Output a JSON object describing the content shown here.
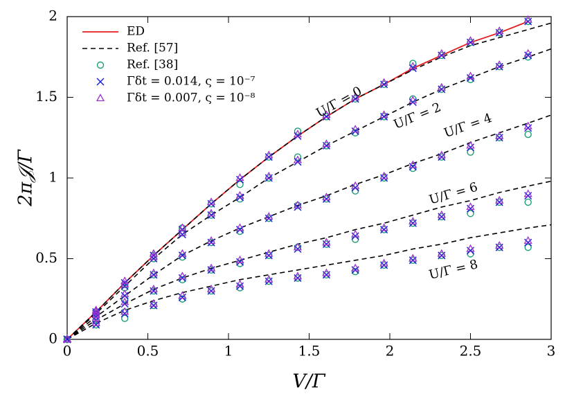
{
  "chart_data": {
    "type": "line",
    "xlabel": "V/Γ",
    "ylabel": "2π𝒥/Γ",
    "x": [
      0,
      0.179,
      0.357,
      0.536,
      0.714,
      0.893,
      1.071,
      1.25,
      1.429,
      1.607,
      1.786,
      1.964,
      2.143,
      2.321,
      2.5,
      2.679,
      2.857,
      3
    ],
    "xlim": [
      0,
      3
    ],
    "ylim": [
      0,
      2
    ],
    "xticks": [
      0,
      0.5,
      1,
      1.5,
      2,
      2.5,
      3
    ],
    "yticks": [
      0,
      0.5,
      1,
      1.5,
      2
    ],
    "legend": "upper left",
    "annotations": [
      "U/Γ = 0",
      "U/Γ = 2",
      "U/Γ = 4",
      "U/Γ = 6",
      "U/Γ = 8"
    ],
    "series": [
      {
        "name": "ED",
        "style": "line",
        "color": "#e41a1c",
        "curves": [
          [
            0,
            0.17,
            0.35,
            0.52,
            0.68,
            0.84,
            0.99,
            1.13,
            1.26,
            1.38,
            1.49,
            1.58,
            1.68,
            1.76,
            1.84,
            1.9,
            1.97,
            null
          ]
        ]
      },
      {
        "name": "Ref. [57]",
        "style": "dashed",
        "color": "#000000",
        "curves": [
          [
            0,
            0.17,
            0.35,
            0.52,
            0.68,
            0.84,
            0.99,
            1.13,
            1.26,
            1.38,
            1.49,
            1.58,
            1.67,
            1.75,
            1.82,
            1.87,
            1.92,
            1.96
          ],
          [
            0,
            0.16,
            0.33,
            0.5,
            0.65,
            0.77,
            0.88,
            1.0,
            1.1,
            1.2,
            1.29,
            1.38,
            1.47,
            1.55,
            1.62,
            1.69,
            1.75,
            1.8
          ],
          [
            0,
            0.14,
            0.27,
            0.4,
            0.52,
            0.61,
            0.69,
            0.76,
            0.83,
            0.89,
            0.96,
            1.02,
            1.09,
            1.15,
            1.22,
            1.28,
            1.34,
            1.39
          ],
          [
            0,
            0.12,
            0.22,
            0.31,
            0.38,
            0.44,
            0.49,
            0.54,
            0.59,
            0.63,
            0.68,
            0.72,
            0.77,
            0.82,
            0.86,
            0.91,
            0.95,
            0.98
          ],
          [
            0,
            0.1,
            0.18,
            0.24,
            0.29,
            0.33,
            0.37,
            0.4,
            0.43,
            0.46,
            0.49,
            0.52,
            0.56,
            0.59,
            0.63,
            0.66,
            0.69,
            0.71
          ]
        ]
      },
      {
        "name": "Ref. [38]",
        "style": "circle",
        "color": "#1a9e77",
        "curves": [
          [
            0,
            0.17,
            0.34,
            0.52,
            0.69,
            0.84,
            0.96,
            1.13,
            1.29,
            1.38,
            1.49,
            1.58,
            1.71,
            1.76,
            1.84,
            1.9,
            1.97,
            null
          ],
          [
            0,
            0.16,
            0.32,
            0.5,
            0.66,
            0.77,
            0.87,
            1.0,
            1.13,
            1.2,
            1.28,
            1.38,
            1.49,
            1.55,
            1.61,
            1.69,
            1.75,
            null
          ],
          [
            0,
            0.14,
            0.25,
            0.4,
            0.51,
            0.6,
            0.67,
            0.75,
            0.83,
            0.87,
            0.92,
            1.0,
            1.06,
            1.13,
            1.16,
            1.25,
            1.27,
            null
          ],
          [
            0,
            0.12,
            0.17,
            0.3,
            0.37,
            0.43,
            0.47,
            0.52,
            0.57,
            0.59,
            0.62,
            0.68,
            0.72,
            0.76,
            0.78,
            0.85,
            0.85,
            null
          ],
          [
            0,
            0.09,
            0.13,
            0.21,
            0.25,
            0.3,
            0.32,
            0.36,
            0.38,
            0.4,
            0.42,
            0.46,
            0.49,
            0.52,
            0.53,
            0.57,
            0.57,
            null
          ]
        ]
      },
      {
        "name": "Γδt = 0.014, ς = 10⁻⁷",
        "style": "cross",
        "color": "#1f1fd6",
        "curves": [
          [
            0,
            0.17,
            0.35,
            0.52,
            0.68,
            0.84,
            0.99,
            1.13,
            1.26,
            1.38,
            1.49,
            1.58,
            1.68,
            1.76,
            1.84,
            1.9,
            1.97,
            null
          ],
          [
            0,
            0.16,
            0.33,
            0.5,
            0.65,
            0.77,
            0.88,
            1.0,
            1.1,
            1.2,
            1.29,
            1.38,
            1.47,
            1.55,
            1.62,
            1.69,
            1.76,
            null
          ],
          [
            0,
            0.14,
            0.27,
            0.4,
            0.52,
            0.6,
            0.68,
            0.75,
            0.82,
            0.87,
            0.94,
            1.0,
            1.07,
            1.13,
            1.19,
            1.25,
            1.31,
            null
          ],
          [
            0,
            0.12,
            0.22,
            0.3,
            0.38,
            0.43,
            0.48,
            0.52,
            0.56,
            0.59,
            0.64,
            0.68,
            0.72,
            0.76,
            0.81,
            0.85,
            0.89,
            null
          ],
          [
            0,
            0.09,
            0.16,
            0.21,
            0.26,
            0.3,
            0.33,
            0.36,
            0.38,
            0.4,
            0.43,
            0.46,
            0.49,
            0.52,
            0.55,
            0.57,
            0.6,
            null
          ]
        ]
      },
      {
        "name": "Γδt = 0.007, ς = 10⁻⁸",
        "style": "triangle",
        "color": "#9933cc",
        "curves": [
          [
            0,
            0.18,
            0.36,
            0.53,
            0.69,
            0.85,
            1.0,
            1.14,
            1.27,
            1.39,
            1.5,
            1.59,
            1.69,
            1.77,
            1.85,
            1.91,
            1.98,
            null
          ],
          [
            0,
            0.17,
            0.34,
            0.51,
            0.66,
            0.78,
            0.89,
            1.01,
            1.11,
            1.21,
            1.3,
            1.39,
            1.48,
            1.56,
            1.63,
            1.7,
            1.77,
            null
          ],
          [
            0,
            0.15,
            0.28,
            0.41,
            0.53,
            0.61,
            0.69,
            0.76,
            0.83,
            0.88,
            0.95,
            1.01,
            1.08,
            1.14,
            1.2,
            1.26,
            1.32,
            null
          ],
          [
            0,
            0.13,
            0.23,
            0.31,
            0.39,
            0.44,
            0.49,
            0.53,
            0.57,
            0.6,
            0.65,
            0.69,
            0.73,
            0.77,
            0.82,
            0.86,
            0.9,
            null
          ],
          [
            0,
            0.1,
            0.17,
            0.22,
            0.27,
            0.31,
            0.34,
            0.37,
            0.39,
            0.41,
            0.44,
            0.47,
            0.5,
            0.53,
            0.56,
            0.58,
            0.61,
            null
          ]
        ]
      }
    ]
  }
}
